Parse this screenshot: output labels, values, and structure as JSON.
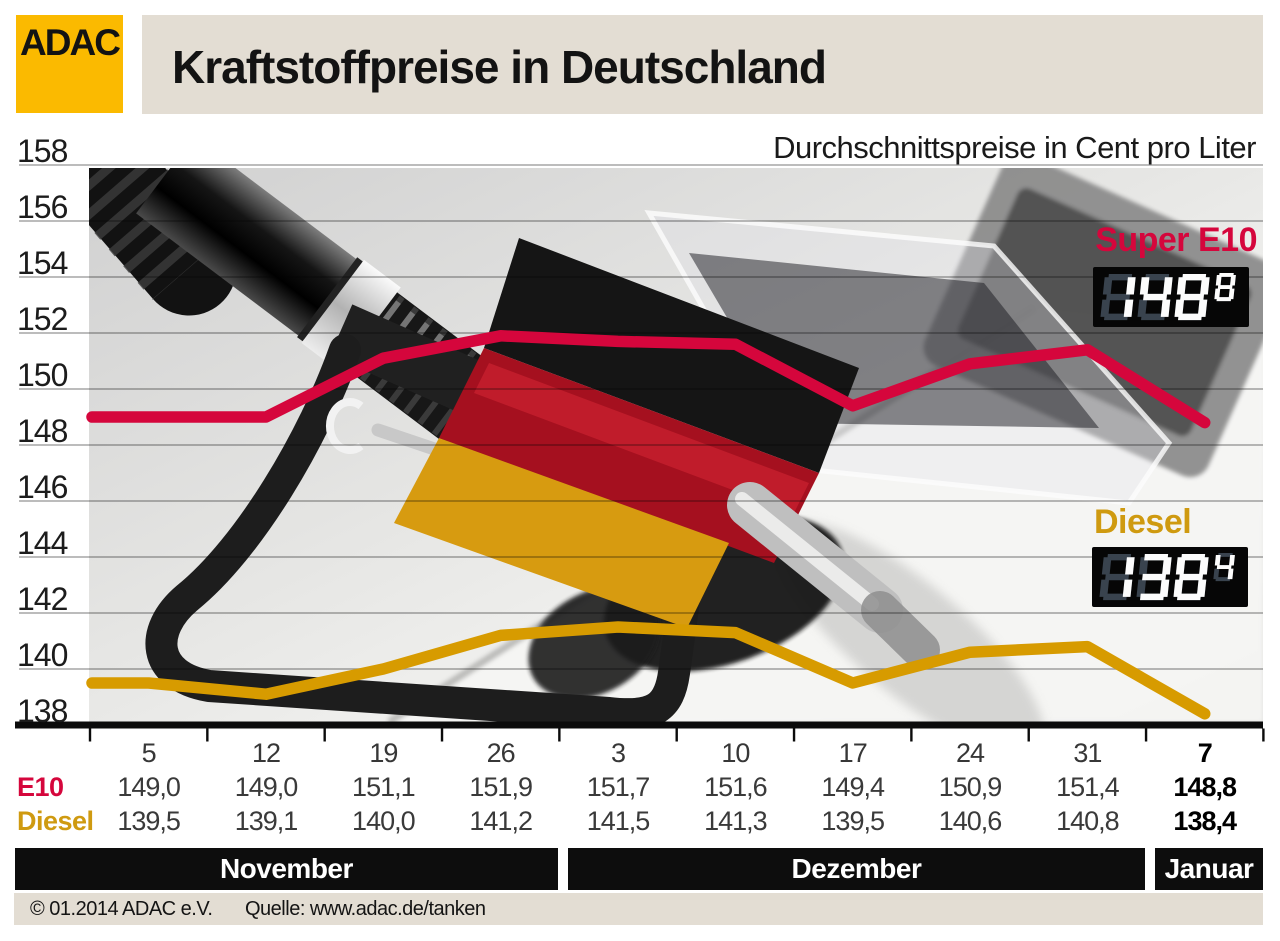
{
  "logo": {
    "text": "ADAC"
  },
  "title": "Kraftstoffpreise in Deutschland",
  "subtitle": "Durchschnittspreise in Cent pro Liter",
  "legend": {
    "e10": {
      "label": "Super E10",
      "display": "148,8"
    },
    "diesel": {
      "label": "Diesel",
      "display": "138,4"
    }
  },
  "chart_data": {
    "type": "line",
    "title": "Kraftstoffpreise in Deutschland",
    "subtitle": "Durchschnittspreise in Cent pro Liter",
    "unit": "Cent pro Liter",
    "ylim": [
      138,
      158
    ],
    "y_tick_step": 2,
    "grid": true,
    "legend_position": "right-overlay",
    "categories": [
      "5",
      "12",
      "19",
      "26",
      "3",
      "10",
      "17",
      "24",
      "31",
      "7"
    ],
    "series": [
      {
        "name": "E10",
        "color": "#d5063c",
        "values": [
          149.0,
          149.0,
          151.1,
          151.9,
          151.7,
          151.6,
          149.4,
          150.9,
          151.4,
          148.8
        ]
      },
      {
        "name": "Diesel",
        "color": "#d79b00",
        "values": [
          139.5,
          139.1,
          140.0,
          141.2,
          141.5,
          141.3,
          139.5,
          140.6,
          140.8,
          138.4
        ]
      }
    ],
    "months": [
      {
        "label": "November",
        "start": 0,
        "end": 3
      },
      {
        "label": "Dezember",
        "start": 4,
        "end": 8
      },
      {
        "label": "Januar",
        "start": 9,
        "end": 9
      }
    ]
  },
  "table": {
    "rows": [
      {
        "label": "E10",
        "color": "#d5063c",
        "values": [
          "149,0",
          "149,0",
          "151,1",
          "151,9",
          "151,7",
          "151,6",
          "149,4",
          "150,9",
          "151,4",
          "148,8"
        ]
      },
      {
        "label": "Diesel",
        "color": "#cf9a10",
        "values": [
          "139,5",
          "139,1",
          "140,0",
          "141,2",
          "141,5",
          "141,3",
          "139,5",
          "140,6",
          "140,8",
          "138,4"
        ]
      }
    ]
  },
  "footer": {
    "copyright": "© 01.2014  ADAC e.V.",
    "source": "Quelle: www.adac.de/tanken"
  }
}
